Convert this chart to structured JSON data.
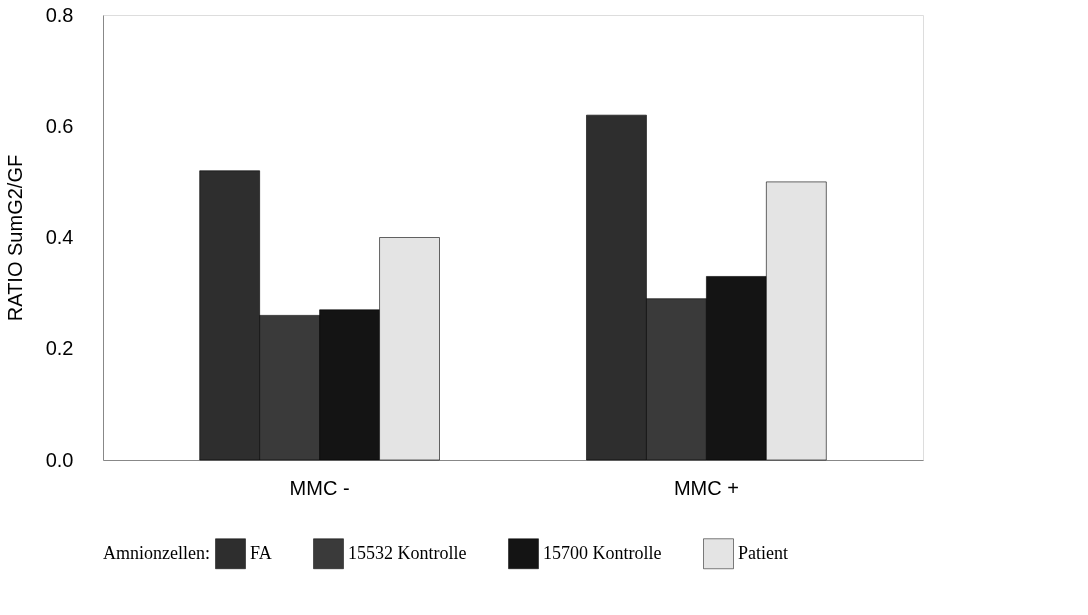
{
  "chart_data": {
    "type": "bar",
    "ylabel": "RATIO SumG2/GF",
    "legend_title": "Amnionzellen:",
    "legend": "bottom",
    "grid": false,
    "categories": [
      "MMC -",
      "MMC +"
    ],
    "ylim": [
      0,
      0.8
    ],
    "yticks": [
      {
        "value": 0,
        "label": "0.0"
      },
      0.2,
      0.4,
      0.6,
      0.8
    ],
    "series": [
      {
        "name": "FA",
        "color": "#2e2e2e",
        "values": [
          0.52,
          0.62
        ]
      },
      {
        "name": "15532 Kontrolle",
        "color": "#3a3a3a",
        "values": [
          0.26,
          0.29
        ]
      },
      {
        "name": "15700 Kontrolle",
        "color": "#141414",
        "values": [
          0.27,
          0.33
        ]
      },
      {
        "name": "Patient",
        "color": "#e4e4e4",
        "values": [
          0.4,
          0.5
        ]
      }
    ]
  }
}
